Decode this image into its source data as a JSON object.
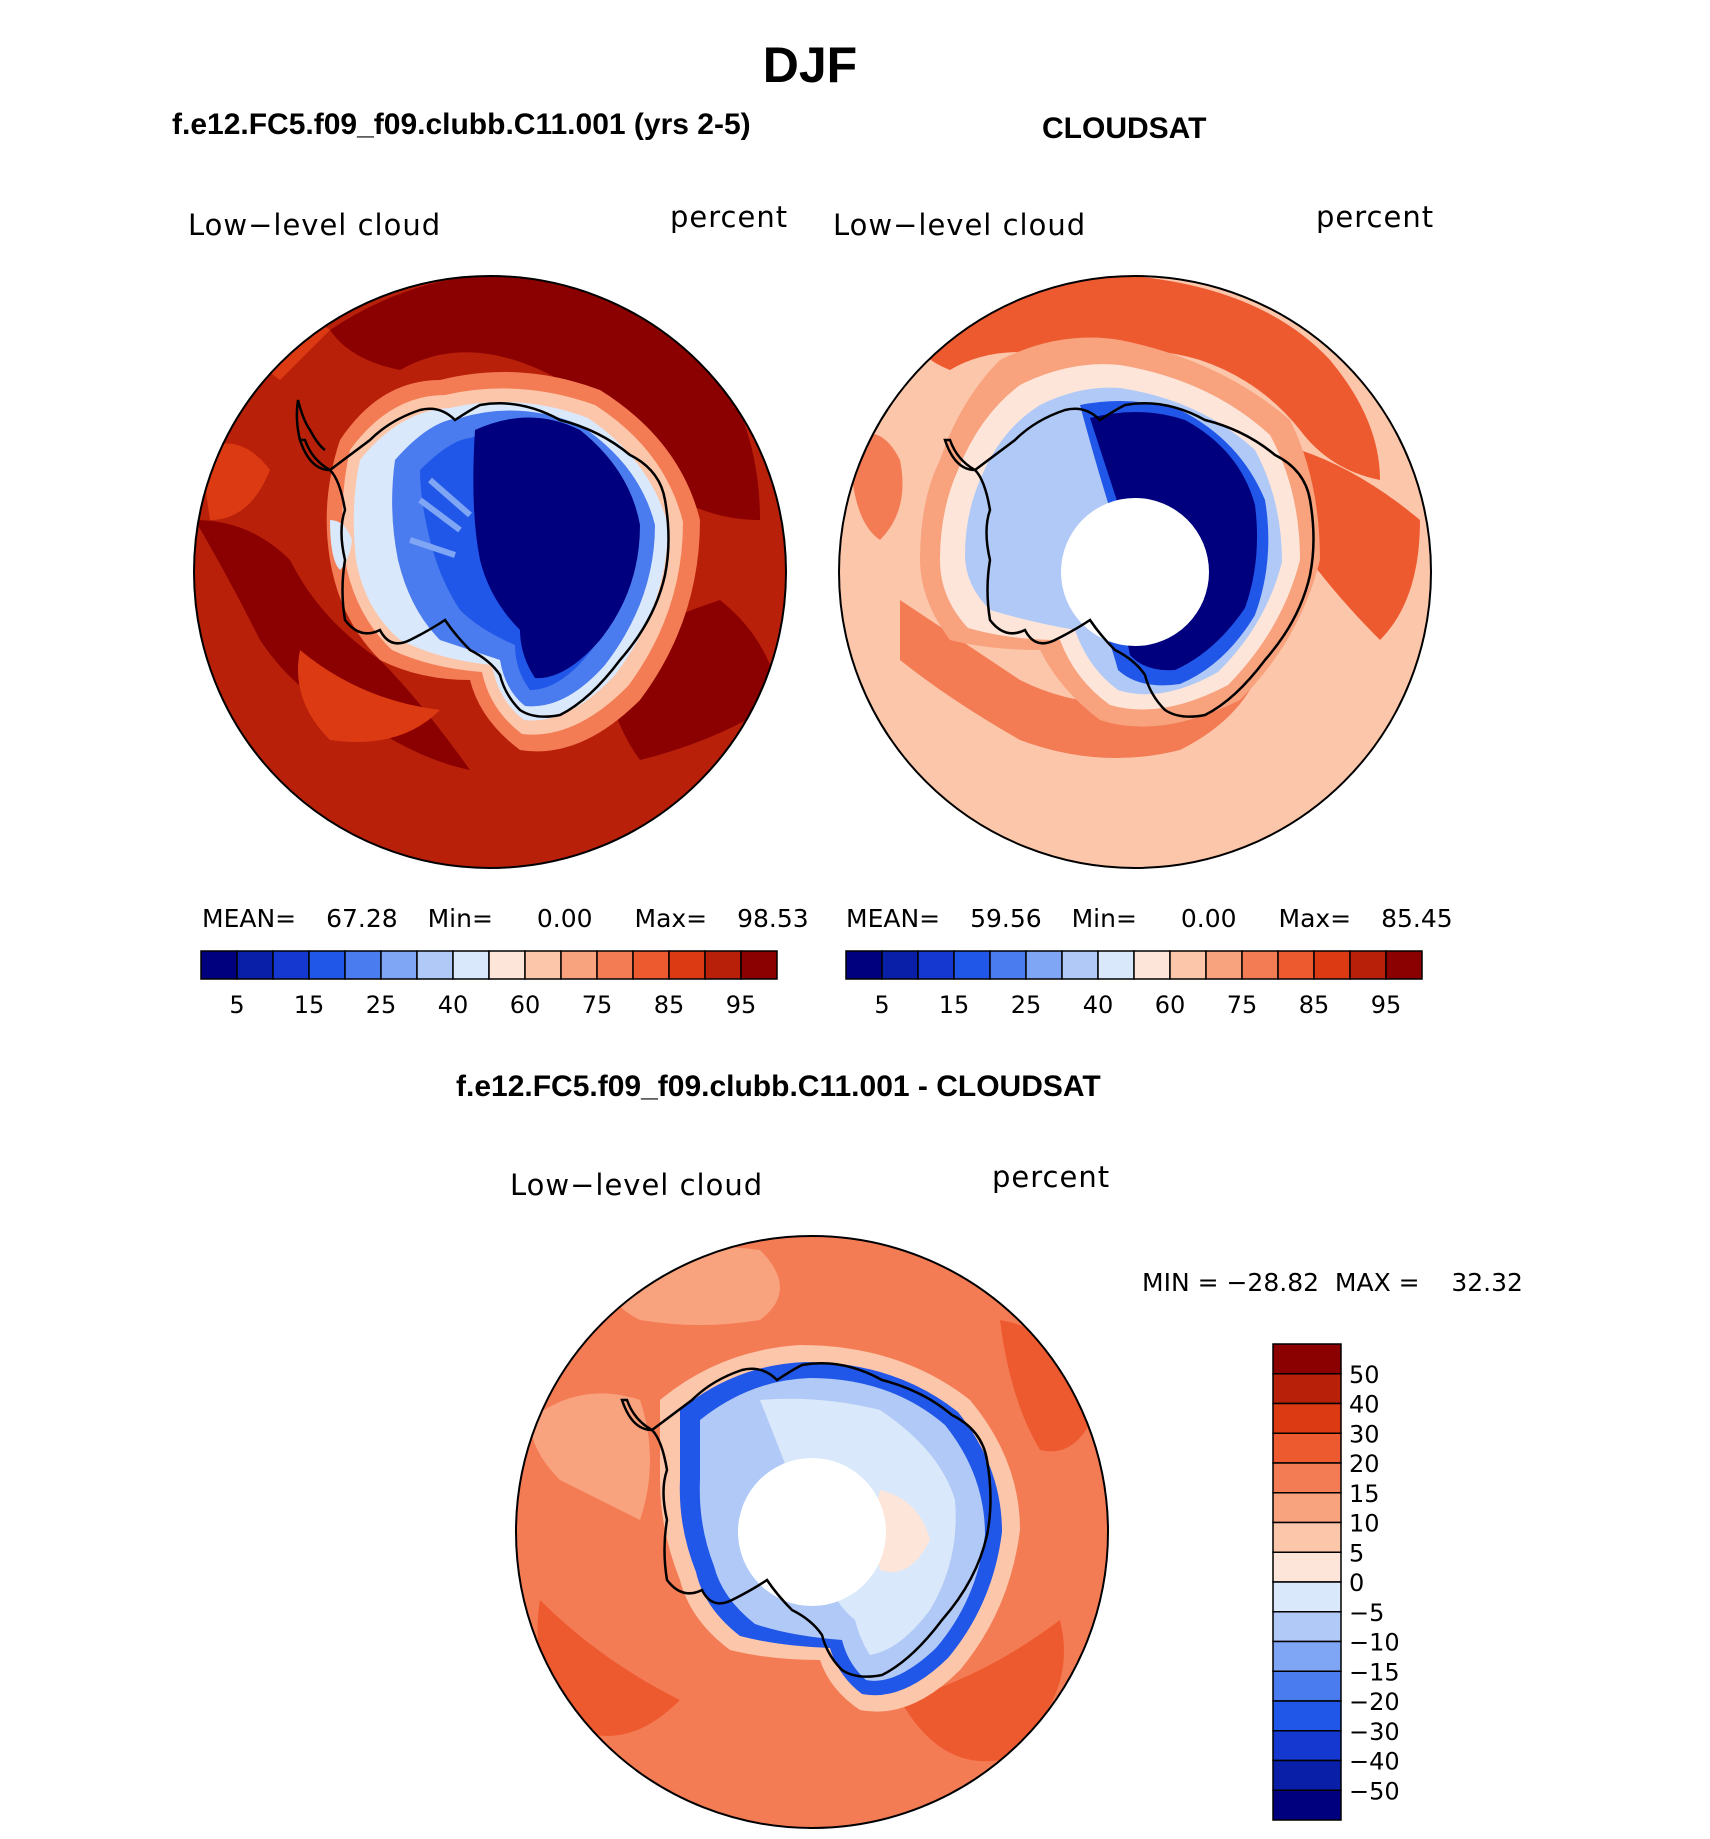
{
  "title": "DJF",
  "panels": [
    {
      "id": "model",
      "case_title": "f.e12.FC5.f09_f09.clubb.C11.001 (yrs 2-5)",
      "variable": "Low−level cloud",
      "units": "percent",
      "stats": {
        "mean_label": "MEAN=",
        "mean": "67.28",
        "min_label": "Min=",
        "min": "0.00",
        "max_label": "Max=",
        "max": "98.53"
      }
    },
    {
      "id": "obs",
      "case_title": "CLOUDSAT",
      "variable": "Low−level cloud",
      "units": "percent",
      "stats": {
        "mean_label": "MEAN=",
        "mean": "59.56",
        "min_label": "Min=",
        "min": "0.00",
        "max_label": "Max=",
        "max": "85.45"
      }
    },
    {
      "id": "diff",
      "case_title": "f.e12.FC5.f09_f09.clubb.C11.001 - CLOUDSAT",
      "variable": "Low−level cloud",
      "units": "percent",
      "stats_text": "MIN = −28.82  MAX =    32.32"
    }
  ],
  "chart_data": [
    {
      "type": "heatmap",
      "projection": "south-polar-stereographic",
      "title": "f.e12.FC5.f09_f09.clubb.C11.001 (yrs 2-5)",
      "variable": "Low−level cloud",
      "units": "percent",
      "mean": 67.28,
      "min": 0.0,
      "max": 98.53,
      "colorbar": {
        "orientation": "horizontal",
        "levels": [
          5,
          10,
          15,
          20,
          25,
          30,
          40,
          50,
          60,
          70,
          75,
          80,
          85,
          90,
          95
        ],
        "tick_labels": [
          "5",
          "15",
          "25",
          "40",
          "60",
          "75",
          "85",
          "95"
        ],
        "colors": [
          "#00007f",
          "#0a1fa8",
          "#1539d0",
          "#2157e8",
          "#4a7cf0",
          "#7fa5f5",
          "#b1c9f7",
          "#d9e8fb",
          "#fde6d9",
          "#fcc6aa",
          "#f8a27e",
          "#f47c55",
          "#ee5a30",
          "#dc3a12",
          "#b8200a",
          "#8b0000"
        ]
      },
      "regions": [
        {
          "region": "antarctic-interior",
          "value_range": [
            0,
            5
          ]
        },
        {
          "region": "antarctic-coast",
          "value_range": [
            10,
            40
          ]
        },
        {
          "region": "ice-edge",
          "value_range": [
            60,
            80
          ]
        },
        {
          "region": "southern-ocean",
          "value_range": [
            90,
            98.53
          ]
        }
      ]
    },
    {
      "type": "heatmap",
      "projection": "south-polar-stereographic",
      "title": "CLOUDSAT",
      "variable": "Low−level cloud",
      "units": "percent",
      "mean": 59.56,
      "min": 0.0,
      "max": 85.45,
      "missing_pole_region": true,
      "colorbar": {
        "orientation": "horizontal",
        "levels": [
          5,
          10,
          15,
          20,
          25,
          30,
          40,
          50,
          60,
          70,
          75,
          80,
          85,
          90,
          95
        ],
        "tick_labels": [
          "5",
          "15",
          "25",
          "40",
          "60",
          "75",
          "85",
          "95"
        ],
        "colors": [
          "#00007f",
          "#0a1fa8",
          "#1539d0",
          "#2157e8",
          "#4a7cf0",
          "#7fa5f5",
          "#b1c9f7",
          "#d9e8fb",
          "#fde6d9",
          "#fcc6aa",
          "#f8a27e",
          "#f47c55",
          "#ee5a30",
          "#dc3a12",
          "#b8200a",
          "#8b0000"
        ]
      },
      "regions": [
        {
          "region": "east-antarctic-interior",
          "value_range": [
            0,
            5
          ]
        },
        {
          "region": "antarctic-peninsula",
          "value_range": [
            40,
            60
          ]
        },
        {
          "region": "southern-ocean",
          "value_range": [
            60,
            85.45
          ]
        }
      ]
    },
    {
      "type": "heatmap",
      "projection": "south-polar-stereographic",
      "title": "f.e12.FC5.f09_f09.clubb.C11.001 - CLOUDSAT",
      "variable": "Low−level cloud",
      "units": "percent",
      "min": -28.82,
      "max": 32.32,
      "missing_pole_region": true,
      "colorbar": {
        "orientation": "vertical",
        "levels": [
          50,
          40,
          30,
          20,
          15,
          10,
          5,
          0,
          -5,
          -10,
          -15,
          -20,
          -30,
          -40,
          -50
        ],
        "tick_labels": [
          "50",
          "40",
          "30",
          "20",
          "15",
          "10",
          "5",
          "0",
          "−5",
          "−10",
          "−15",
          "−20",
          "−30",
          "−40",
          "−50"
        ],
        "colors": [
          "#8b0000",
          "#b8200a",
          "#dc3a12",
          "#ee5a30",
          "#f47c55",
          "#f8a27e",
          "#fcc6aa",
          "#fde6d9",
          "#d9e8fb",
          "#b1c9f7",
          "#7fa5f5",
          "#4a7cf0",
          "#2157e8",
          "#1539d0",
          "#0a1fa8",
          "#00007f"
        ]
      },
      "regions": [
        {
          "region": "antarctic-coast",
          "value_range": [
            -30,
            -10
          ]
        },
        {
          "region": "antarctic-interior",
          "value_range": [
            -5,
            5
          ]
        },
        {
          "region": "southern-ocean",
          "value_range": [
            10,
            30
          ]
        }
      ]
    }
  ]
}
